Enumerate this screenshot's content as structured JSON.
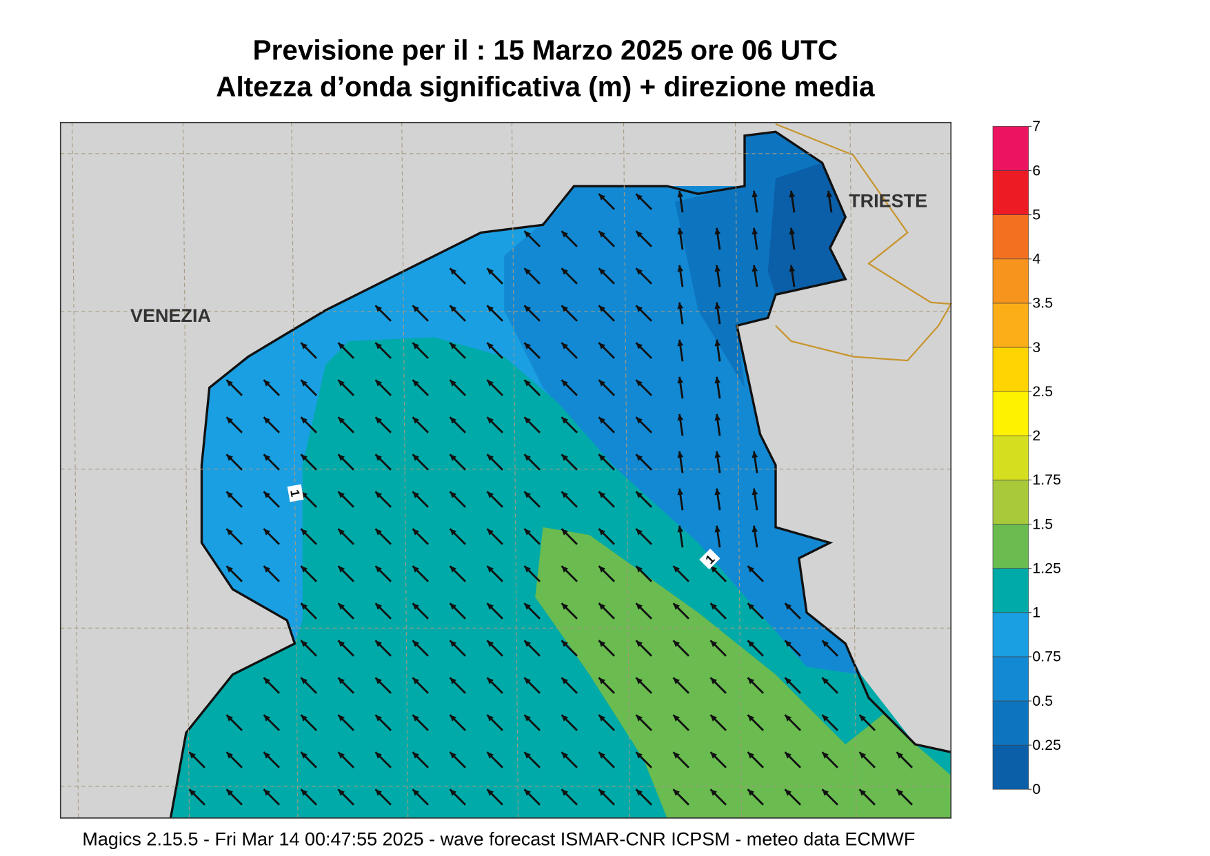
{
  "header": {
    "title": "Previsione per il  :  15   Marzo   2025   ore 06 UTC",
    "subtitle": "Altezza d’onda significativa (m) + direzione media"
  },
  "map": {
    "places": [
      "VENEZIA",
      "TRIESTE"
    ],
    "contour_labels": [
      1,
      1
    ]
  },
  "colorbar": {
    "levels": [
      0,
      0.25,
      0.5,
      0.75,
      1,
      1.25,
      1.5,
      1.75,
      2,
      2.5,
      3,
      3.5,
      4,
      5,
      6,
      7
    ],
    "colors": [
      "#0b5ea8",
      "#0d75c0",
      "#1389d4",
      "#1a9fe2",
      "#00aaa8",
      "#6abb50",
      "#a8c93a",
      "#d6df1f",
      "#fff200",
      "#ffd400",
      "#fbae17",
      "#f7941d",
      "#f37021",
      "#ed1c24",
      "#ec1460"
    ]
  },
  "footer": "Magics 2.15.5 - Fri Mar 14 00:47:55 2025 - wave forecast  ISMAR-CNR  ICPSM - meteo data    ECMWF"
}
